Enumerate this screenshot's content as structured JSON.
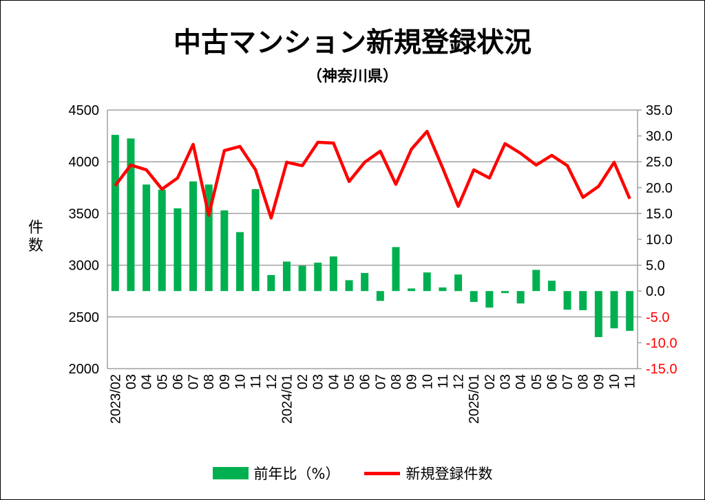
{
  "chart_data": {
    "type": "bar+line",
    "title": "中古マンション新規登録状況",
    "subtitle": "（神奈川県）",
    "ylabel": "件数",
    "ylim_left": [
      2000,
      4500
    ],
    "ylim_right": [
      -15,
      35
    ],
    "left_ticks": [
      "4500",
      "4000",
      "3500",
      "3000",
      "2500",
      "2000"
    ],
    "right_ticks": [
      "35.0",
      "30.0",
      "25.0",
      "20.0",
      "15.0",
      "10.0",
      "5.0",
      "0.0",
      "-5.0",
      "-10.0",
      "-15.0"
    ],
    "categories": [
      "2023/02",
      "03",
      "04",
      "05",
      "06",
      "07",
      "08",
      "09",
      "10",
      "11",
      "12",
      "2024/01",
      "02",
      "03",
      "04",
      "05",
      "06",
      "07",
      "08",
      "09",
      "10",
      "11",
      "12",
      "2025/01",
      "02",
      "03",
      "04",
      "05",
      "06",
      "07",
      "08",
      "09",
      "10",
      "11"
    ],
    "series": [
      {
        "name": "前年比(%)",
        "type": "bar",
        "axis": "right",
        "color": "#00b050",
        "values": [
          30.2,
          29.5,
          20.6,
          19.6,
          16.0,
          21.2,
          20.6,
          15.6,
          11.4,
          19.7,
          3.1,
          5.7,
          4.9,
          5.5,
          6.7,
          2.1,
          3.5,
          -1.9,
          8.5,
          0.5,
          3.6,
          0.7,
          3.2,
          -2.1,
          -3.2,
          -0.4,
          -2.4,
          4.1,
          2.0,
          -3.6,
          -3.7,
          -8.9,
          -7.2,
          -7.7
        ]
      },
      {
        "name": "新規登録件数",
        "type": "line",
        "axis": "left",
        "color": "#ff0000",
        "values": [
          3769,
          3968,
          3922,
          3735,
          3843,
          4168,
          3483,
          4108,
          4148,
          3922,
          3456,
          3995,
          3962,
          4188,
          4181,
          3809,
          3995,
          4102,
          3782,
          4122,
          4294,
          3941,
          3569,
          3922,
          3843,
          4175,
          4082,
          3968,
          4062,
          3962,
          3656,
          3762,
          3995,
          3642
        ]
      }
    ],
    "legend": {
      "placement": "bottom",
      "bar_label": "前年比（%）",
      "line_label": "新規登録件数"
    },
    "negative_tick_color": "#ff0000"
  }
}
